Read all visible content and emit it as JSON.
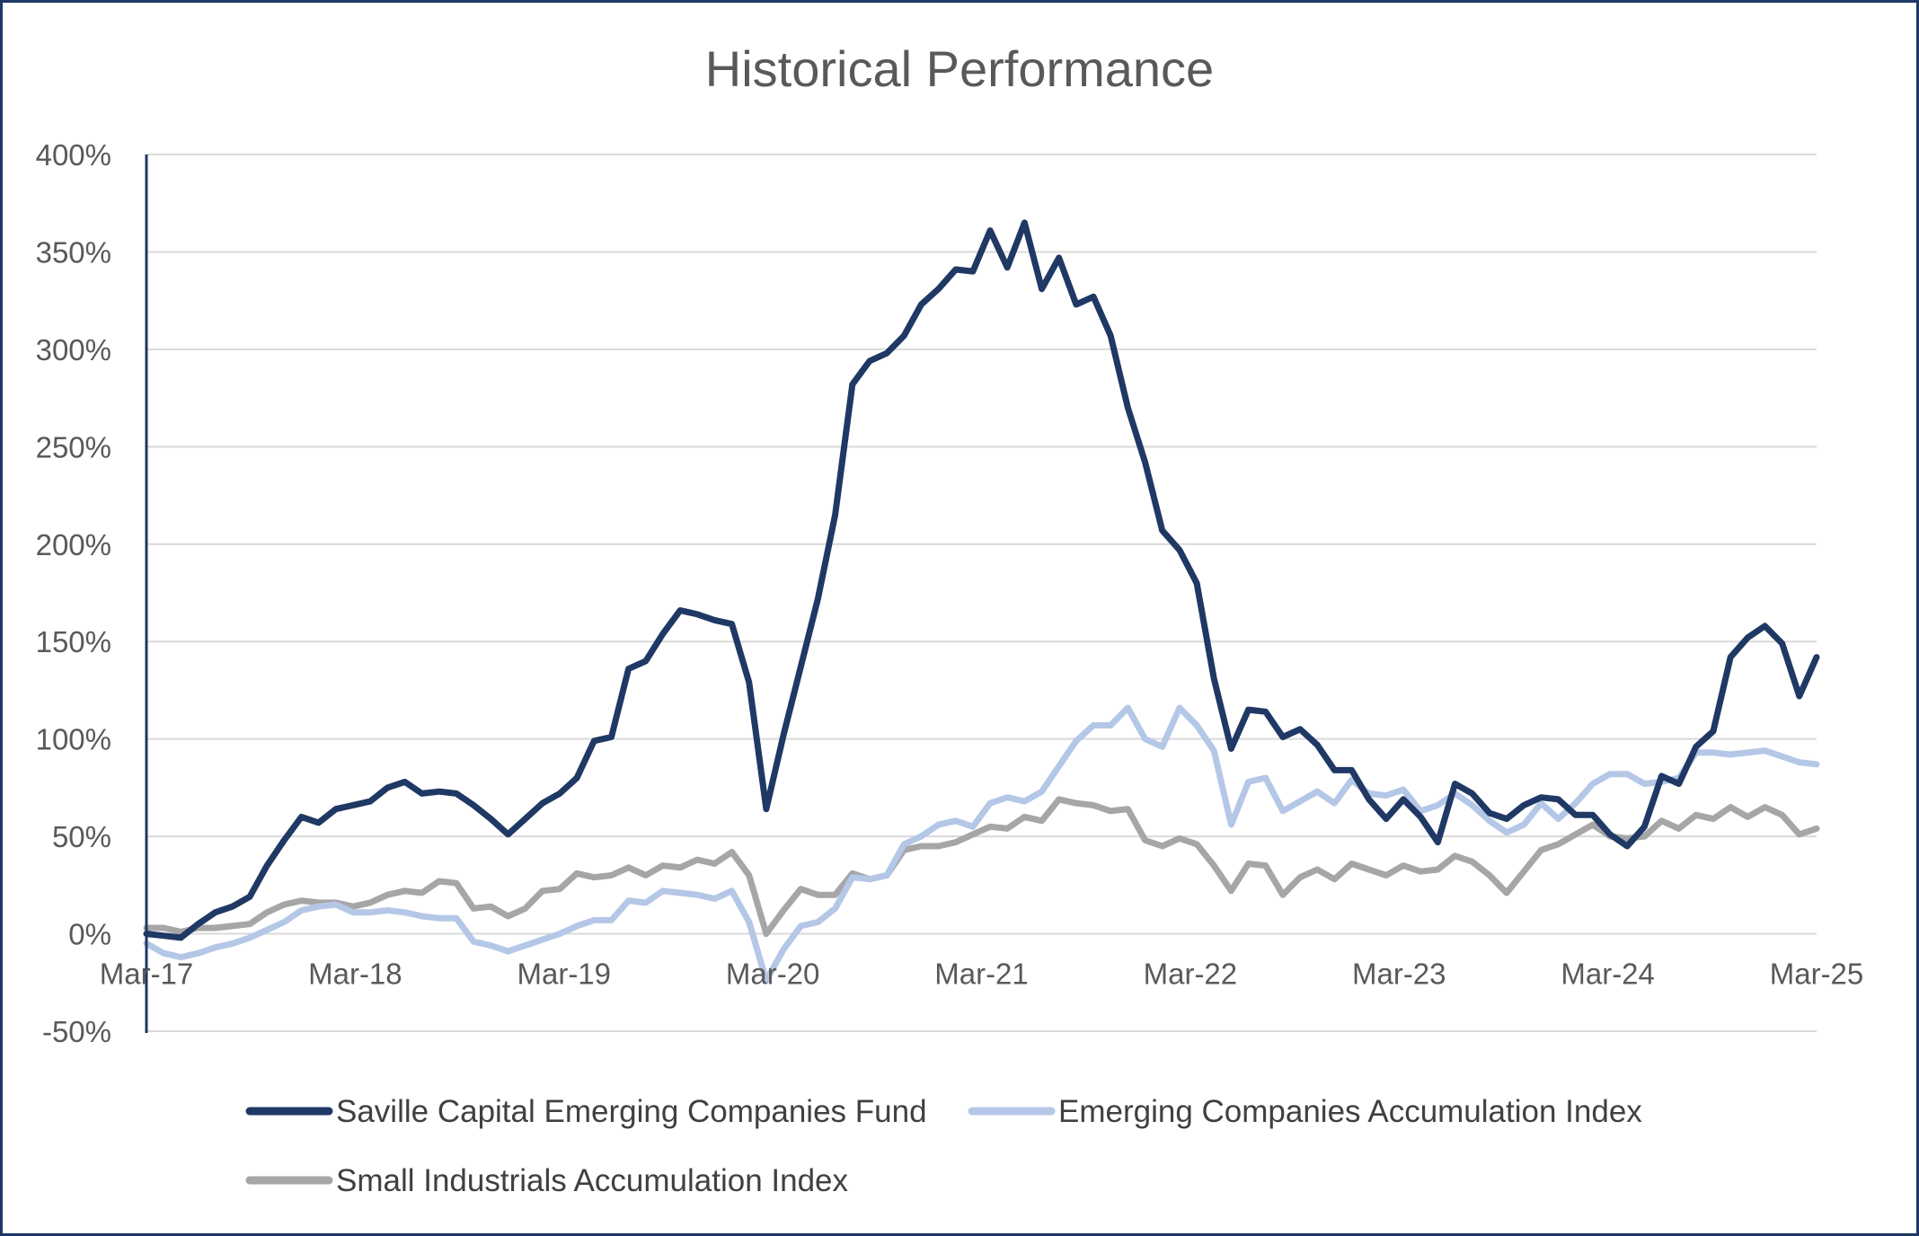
{
  "chart_data": {
    "type": "line",
    "title": "Historical Performance",
    "xlabel": "",
    "ylabel": "",
    "ylim": [
      -0.5,
      4.0
    ],
    "y_ticks": [
      "400%",
      "350%",
      "300%",
      "250%",
      "200%",
      "150%",
      "100%",
      "50%",
      "0%",
      "-50%"
    ],
    "x_ticks": [
      "Mar-17",
      "Mar-18",
      "Mar-19",
      "Mar-20",
      "Mar-21",
      "Mar-22",
      "Mar-23",
      "Mar-24",
      "Mar-25"
    ],
    "x_start": "Mar-17",
    "x_end": "Mar-25",
    "grid": true,
    "legend_position": "bottom",
    "series": [
      {
        "name": "Saville Capital Emerging Companies Fund",
        "color": "#1f3864",
        "values": [
          0.0,
          -0.01,
          -0.02,
          0.05,
          0.11,
          0.14,
          0.19,
          0.35,
          0.48,
          0.6,
          0.57,
          0.64,
          0.66,
          0.68,
          0.75,
          0.78,
          0.72,
          0.73,
          0.72,
          0.66,
          0.59,
          0.51,
          0.59,
          0.67,
          0.72,
          0.8,
          0.99,
          1.01,
          1.36,
          1.4,
          1.54,
          1.66,
          1.64,
          1.61,
          1.59,
          1.29,
          0.64,
          1.02,
          1.37,
          1.72,
          2.15,
          2.82,
          2.94,
          2.98,
          3.07,
          3.23,
          3.31,
          3.41,
          3.4,
          3.61,
          3.42,
          3.65,
          3.31,
          3.47,
          3.23,
          3.27,
          3.07,
          2.7,
          2.42,
          2.07,
          1.97,
          1.8,
          1.31,
          0.95,
          1.15,
          1.14,
          1.01,
          1.05,
          0.97,
          0.84,
          0.84,
          0.69,
          0.59,
          0.69,
          0.6,
          0.47,
          0.77,
          0.72,
          0.62,
          0.59,
          0.66,
          0.7,
          0.69,
          0.61,
          0.61,
          0.51,
          0.45,
          0.55,
          0.81,
          0.77,
          0.96,
          1.04,
          1.42,
          1.52,
          1.58,
          1.49,
          1.22,
          1.42
        ]
      },
      {
        "name": "Emerging Companies Accumulation Index",
        "color": "#b4c7e7",
        "values": [
          -0.05,
          -0.1,
          -0.12,
          -0.1,
          -0.07,
          -0.05,
          -0.02,
          0.02,
          0.06,
          0.12,
          0.14,
          0.15,
          0.11,
          0.11,
          0.12,
          0.11,
          0.09,
          0.08,
          0.08,
          -0.04,
          -0.06,
          -0.09,
          -0.06,
          -0.03,
          0.0,
          0.04,
          0.07,
          0.07,
          0.17,
          0.16,
          0.22,
          0.21,
          0.2,
          0.18,
          0.22,
          0.06,
          -0.24,
          -0.08,
          0.04,
          0.06,
          0.13,
          0.29,
          0.28,
          0.3,
          0.46,
          0.5,
          0.56,
          0.58,
          0.55,
          0.67,
          0.7,
          0.68,
          0.73,
          0.86,
          0.99,
          1.07,
          1.07,
          1.16,
          1.0,
          0.96,
          1.16,
          1.07,
          0.94,
          0.56,
          0.78,
          0.8,
          0.63,
          0.68,
          0.73,
          0.67,
          0.79,
          0.72,
          0.71,
          0.74,
          0.63,
          0.66,
          0.72,
          0.66,
          0.58,
          0.52,
          0.56,
          0.67,
          0.59,
          0.67,
          0.77,
          0.82,
          0.82,
          0.77,
          0.78,
          0.8,
          0.93,
          0.93,
          0.92,
          0.93,
          0.94,
          0.91,
          0.88,
          0.87
        ]
      },
      {
        "name": "Small Industrials Accumulation Index",
        "color": "#a6a6a6",
        "values": [
          0.03,
          0.03,
          0.01,
          0.03,
          0.03,
          0.04,
          0.05,
          0.11,
          0.15,
          0.17,
          0.16,
          0.16,
          0.14,
          0.16,
          0.2,
          0.22,
          0.21,
          0.27,
          0.26,
          0.13,
          0.14,
          0.09,
          0.13,
          0.22,
          0.23,
          0.31,
          0.29,
          0.3,
          0.34,
          0.3,
          0.35,
          0.34,
          0.38,
          0.36,
          0.42,
          0.3,
          0.0,
          0.12,
          0.23,
          0.2,
          0.2,
          0.31,
          0.28,
          0.3,
          0.43,
          0.45,
          0.45,
          0.47,
          0.51,
          0.55,
          0.54,
          0.6,
          0.58,
          0.69,
          0.67,
          0.66,
          0.63,
          0.64,
          0.48,
          0.45,
          0.49,
          0.46,
          0.35,
          0.22,
          0.36,
          0.35,
          0.2,
          0.29,
          0.33,
          0.28,
          0.36,
          0.33,
          0.3,
          0.35,
          0.32,
          0.33,
          0.4,
          0.37,
          0.3,
          0.21,
          0.32,
          0.43,
          0.46,
          0.51,
          0.56,
          0.5,
          0.49,
          0.5,
          0.58,
          0.54,
          0.61,
          0.59,
          0.65,
          0.6,
          0.65,
          0.61,
          0.51,
          0.54
        ]
      }
    ]
  }
}
